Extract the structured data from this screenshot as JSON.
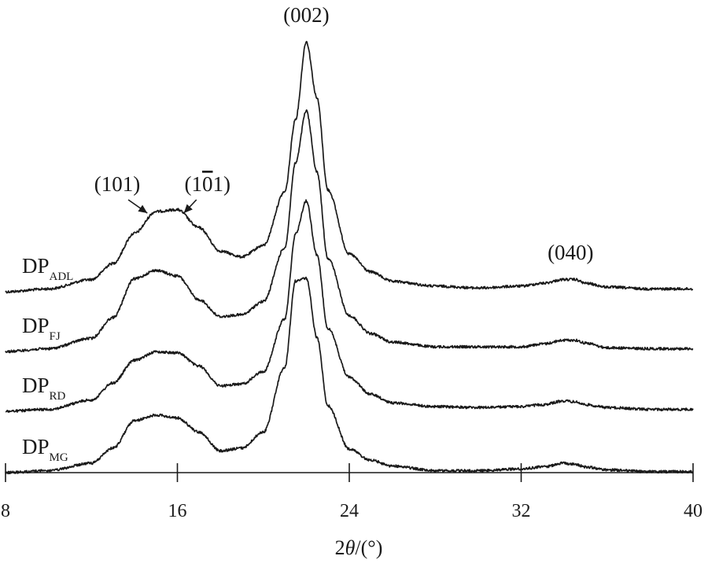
{
  "chart_data": {
    "type": "line",
    "xlabel_prefix": "2",
    "xlabel_theta": "θ",
    "xlabel_suffix": "/(°)",
    "xlim": [
      8,
      40
    ],
    "x_ticks": [
      8,
      16,
      24,
      32,
      40
    ],
    "x_tick_labels": [
      "8",
      "16",
      "24",
      "32",
      "40"
    ],
    "y_axis_shown": false,
    "grid": false,
    "legend": "none",
    "line_color": "#1a1a1a",
    "series": [
      {
        "label_main": "DP",
        "label_sub": "ADL",
        "x": [
          8,
          10,
          12,
          13,
          14,
          15,
          16,
          17,
          18,
          19,
          20,
          21,
          21.5,
          22,
          22.5,
          23,
          24,
          25,
          26,
          28,
          30,
          32,
          33,
          34,
          34.5,
          35,
          36,
          38,
          40
        ],
        "y": [
          0.0,
          0.03,
          0.13,
          0.3,
          0.62,
          0.85,
          0.87,
          0.68,
          0.43,
          0.37,
          0.49,
          1.06,
          1.83,
          2.65,
          2.05,
          1.08,
          0.4,
          0.21,
          0.11,
          0.06,
          0.04,
          0.06,
          0.09,
          0.13,
          0.13,
          0.09,
          0.05,
          0.03,
          0.03
        ]
      },
      {
        "label_main": "DP",
        "label_sub": "FJ",
        "x": [
          8,
          10,
          12,
          13,
          14,
          15,
          16,
          17,
          18,
          19,
          20,
          21,
          21.5,
          22,
          22.5,
          23,
          24,
          25,
          26,
          28,
          30,
          32,
          33,
          34,
          34.5,
          35,
          36,
          38,
          40
        ],
        "y": [
          0.0,
          0.03,
          0.14,
          0.36,
          0.77,
          0.86,
          0.8,
          0.55,
          0.37,
          0.39,
          0.53,
          1.1,
          2.0,
          2.55,
          1.9,
          0.99,
          0.38,
          0.19,
          0.1,
          0.05,
          0.05,
          0.05,
          0.08,
          0.12,
          0.12,
          0.09,
          0.04,
          0.03,
          0.03
        ]
      },
      {
        "label_main": "DP",
        "label_sub": "RD",
        "x": [
          8,
          10,
          12,
          13,
          14,
          15,
          16,
          17,
          18,
          19,
          20,
          21,
          21.5,
          22,
          22.5,
          23,
          24,
          25,
          26,
          28,
          30,
          32,
          33,
          34,
          34.5,
          35,
          36,
          38,
          40
        ],
        "y": [
          0.0,
          0.02,
          0.12,
          0.3,
          0.54,
          0.63,
          0.62,
          0.48,
          0.27,
          0.29,
          0.42,
          0.98,
          1.88,
          2.23,
          1.65,
          0.88,
          0.36,
          0.18,
          0.09,
          0.05,
          0.04,
          0.05,
          0.07,
          0.11,
          0.1,
          0.07,
          0.04,
          0.02,
          0.02
        ]
      },
      {
        "label_main": "DP",
        "label_sub": "MG",
        "x": [
          8,
          10,
          12,
          13,
          14,
          15,
          16,
          17,
          18,
          19,
          20,
          21,
          21.5,
          22,
          22.5,
          23,
          24,
          25,
          26,
          28,
          30,
          32,
          33,
          34,
          34.5,
          35,
          36,
          38,
          40
        ],
        "y": [
          0.0,
          0.02,
          0.1,
          0.26,
          0.55,
          0.61,
          0.58,
          0.43,
          0.23,
          0.26,
          0.43,
          1.12,
          2.03,
          2.06,
          1.43,
          0.71,
          0.25,
          0.13,
          0.07,
          0.02,
          0.02,
          0.04,
          0.06,
          0.1,
          0.09,
          0.06,
          0.03,
          0.01,
          0.01
        ]
      }
    ],
    "annotations": [
      {
        "text": "(101)",
        "x": 13.2,
        "points_to_x": 14.6,
        "row": "upper"
      },
      {
        "text_before": "(1",
        "text_bar": "0",
        "text_after": "1)",
        "x": 17.4,
        "points_to_x": 16.3,
        "row": "upper"
      },
      {
        "text": "(002)",
        "x": 22.0,
        "row": "top"
      },
      {
        "text": "(040)",
        "x": 34.3,
        "row": "middle"
      }
    ]
  }
}
